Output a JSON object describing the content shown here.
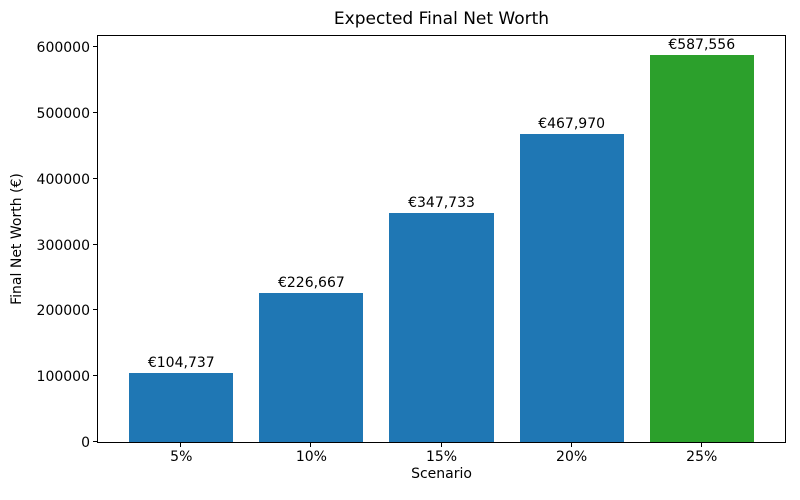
{
  "figure": {
    "background_color": "#ffffff",
    "spine_color": "#000000",
    "text_color": "#000000"
  },
  "chart_data": {
    "type": "bar",
    "title": "Expected Final Net Worth",
    "xlabel": "Scenario",
    "ylabel": "Final Net Worth (€)",
    "categories": [
      "5%",
      "10%",
      "15%",
      "20%",
      "25%"
    ],
    "values": [
      104737,
      226667,
      347733,
      467970,
      587556
    ],
    "bar_labels": [
      "€104,737",
      "€226,667",
      "€347,733",
      "€467,970",
      "€587,556"
    ],
    "bar_colors": [
      "#1f77b4",
      "#1f77b4",
      "#1f77b4",
      "#1f77b4",
      "#2ca02c"
    ],
    "highlight_color": "#2ca02c",
    "default_bar_color": "#1f77b4",
    "ylim": [
      0,
      617000
    ],
    "yticks": [
      0,
      100000,
      200000,
      300000,
      400000,
      500000,
      600000
    ],
    "ytick_labels": [
      "0",
      "100000",
      "200000",
      "300000",
      "400000",
      "500000",
      "600000"
    ],
    "grid": false,
    "legend": null,
    "bar_relative_width": 0.8
  }
}
